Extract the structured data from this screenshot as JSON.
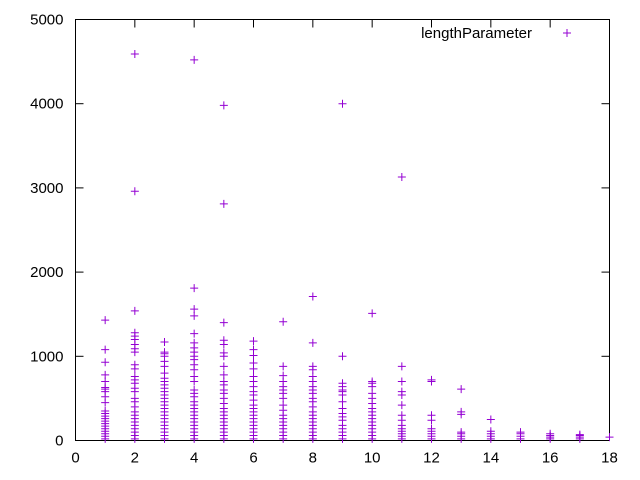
{
  "chart_data": {
    "type": "scatter",
    "title": "",
    "xlabel": "",
    "ylabel": "",
    "xlim": [
      0,
      18
    ],
    "ylim": [
      0,
      5000
    ],
    "xticks": [
      "0",
      "2",
      "4",
      "6",
      "8",
      "10",
      "12",
      "14",
      "16",
      "18"
    ],
    "yticks": [
      "0",
      "1000",
      "2000",
      "3000",
      "4000",
      "5000"
    ],
    "grid": false,
    "legend_position": "top-right",
    "marker": "plus",
    "series": [
      {
        "name": "lengthParameter",
        "color": "#9400d3",
        "points": [
          [
            1,
            20
          ],
          [
            1,
            50
          ],
          [
            1,
            80
          ],
          [
            1,
            110
          ],
          [
            1,
            140
          ],
          [
            1,
            170
          ],
          [
            1,
            200
          ],
          [
            1,
            230
          ],
          [
            1,
            260
          ],
          [
            1,
            290
          ],
          [
            1,
            320
          ],
          [
            1,
            350
          ],
          [
            1,
            450
          ],
          [
            1,
            520
          ],
          [
            1,
            580
          ],
          [
            1,
            610
          ],
          [
            1,
            630
          ],
          [
            1,
            700
          ],
          [
            1,
            780
          ],
          [
            1,
            930
          ],
          [
            1,
            1080
          ],
          [
            1,
            1430
          ],
          [
            2,
            20
          ],
          [
            2,
            60
          ],
          [
            2,
            100
          ],
          [
            2,
            140
          ],
          [
            2,
            180
          ],
          [
            2,
            220
          ],
          [
            2,
            260
          ],
          [
            2,
            300
          ],
          [
            2,
            340
          ],
          [
            2,
            400
          ],
          [
            2,
            460
          ],
          [
            2,
            500
          ],
          [
            2,
            580
          ],
          [
            2,
            620
          ],
          [
            2,
            680
          ],
          [
            2,
            720
          ],
          [
            2,
            760
          ],
          [
            2,
            850
          ],
          [
            2,
            900
          ],
          [
            2,
            1050
          ],
          [
            2,
            1090
          ],
          [
            2,
            1140
          ],
          [
            2,
            1200
          ],
          [
            2,
            1240
          ],
          [
            2,
            1280
          ],
          [
            2,
            1540
          ],
          [
            2,
            2960
          ],
          [
            2,
            4590
          ],
          [
            3,
            20
          ],
          [
            3,
            60
          ],
          [
            3,
            100
          ],
          [
            3,
            140
          ],
          [
            3,
            180
          ],
          [
            3,
            220
          ],
          [
            3,
            260
          ],
          [
            3,
            300
          ],
          [
            3,
            340
          ],
          [
            3,
            380
          ],
          [
            3,
            420
          ],
          [
            3,
            460
          ],
          [
            3,
            500
          ],
          [
            3,
            540
          ],
          [
            3,
            580
          ],
          [
            3,
            620
          ],
          [
            3,
            660
          ],
          [
            3,
            700
          ],
          [
            3,
            740
          ],
          [
            3,
            800
          ],
          [
            3,
            880
          ],
          [
            3,
            940
          ],
          [
            3,
            1000
          ],
          [
            3,
            1030
          ],
          [
            3,
            1050
          ],
          [
            3,
            1170
          ],
          [
            4,
            20
          ],
          [
            4,
            60
          ],
          [
            4,
            100
          ],
          [
            4,
            140
          ],
          [
            4,
            180
          ],
          [
            4,
            220
          ],
          [
            4,
            260
          ],
          [
            4,
            300
          ],
          [
            4,
            340
          ],
          [
            4,
            380
          ],
          [
            4,
            420
          ],
          [
            4,
            460
          ],
          [
            4,
            520
          ],
          [
            4,
            560
          ],
          [
            4,
            600
          ],
          [
            4,
            700
          ],
          [
            4,
            760
          ],
          [
            4,
            840
          ],
          [
            4,
            900
          ],
          [
            4,
            960
          ],
          [
            4,
            1000
          ],
          [
            4,
            1050
          ],
          [
            4,
            1100
          ],
          [
            4,
            1160
          ],
          [
            4,
            1270
          ],
          [
            4,
            1480
          ],
          [
            4,
            1560
          ],
          [
            4,
            1810
          ],
          [
            4,
            4520
          ],
          [
            5,
            20
          ],
          [
            5,
            60
          ],
          [
            5,
            100
          ],
          [
            5,
            140
          ],
          [
            5,
            180
          ],
          [
            5,
            220
          ],
          [
            5,
            260
          ],
          [
            5,
            300
          ],
          [
            5,
            340
          ],
          [
            5,
            380
          ],
          [
            5,
            440
          ],
          [
            5,
            500
          ],
          [
            5,
            560
          ],
          [
            5,
            600
          ],
          [
            5,
            660
          ],
          [
            5,
            700
          ],
          [
            5,
            780
          ],
          [
            5,
            880
          ],
          [
            5,
            1000
          ],
          [
            5,
            1040
          ],
          [
            5,
            1140
          ],
          [
            5,
            1190
          ],
          [
            5,
            1400
          ],
          [
            5,
            2810
          ],
          [
            5,
            3980
          ],
          [
            6,
            20
          ],
          [
            6,
            60
          ],
          [
            6,
            100
          ],
          [
            6,
            140
          ],
          [
            6,
            180
          ],
          [
            6,
            220
          ],
          [
            6,
            260
          ],
          [
            6,
            300
          ],
          [
            6,
            340
          ],
          [
            6,
            380
          ],
          [
            6,
            420
          ],
          [
            6,
            480
          ],
          [
            6,
            540
          ],
          [
            6,
            580
          ],
          [
            6,
            640
          ],
          [
            6,
            700
          ],
          [
            6,
            760
          ],
          [
            6,
            850
          ],
          [
            6,
            920
          ],
          [
            6,
            1010
          ],
          [
            6,
            1080
          ],
          [
            6,
            1180
          ],
          [
            7,
            20
          ],
          [
            7,
            60
          ],
          [
            7,
            100
          ],
          [
            7,
            140
          ],
          [
            7,
            180
          ],
          [
            7,
            220
          ],
          [
            7,
            260
          ],
          [
            7,
            300
          ],
          [
            7,
            360
          ],
          [
            7,
            420
          ],
          [
            7,
            500
          ],
          [
            7,
            560
          ],
          [
            7,
            600
          ],
          [
            7,
            640
          ],
          [
            7,
            700
          ],
          [
            7,
            770
          ],
          [
            7,
            880
          ],
          [
            7,
            1410
          ],
          [
            8,
            20
          ],
          [
            8,
            60
          ],
          [
            8,
            100
          ],
          [
            8,
            140
          ],
          [
            8,
            180
          ],
          [
            8,
            220
          ],
          [
            8,
            260
          ],
          [
            8,
            300
          ],
          [
            8,
            340
          ],
          [
            8,
            400
          ],
          [
            8,
            460
          ],
          [
            8,
            500
          ],
          [
            8,
            560
          ],
          [
            8,
            600
          ],
          [
            8,
            640
          ],
          [
            8,
            700
          ],
          [
            8,
            760
          ],
          [
            8,
            840
          ],
          [
            8,
            880
          ],
          [
            8,
            1160
          ],
          [
            8,
            1710
          ],
          [
            9,
            20
          ],
          [
            9,
            60
          ],
          [
            9,
            100
          ],
          [
            9,
            140
          ],
          [
            9,
            180
          ],
          [
            9,
            240
          ],
          [
            9,
            280
          ],
          [
            9,
            320
          ],
          [
            9,
            380
          ],
          [
            9,
            460
          ],
          [
            9,
            540
          ],
          [
            9,
            580
          ],
          [
            9,
            600
          ],
          [
            9,
            640
          ],
          [
            9,
            680
          ],
          [
            9,
            1000
          ],
          [
            9,
            4000
          ],
          [
            10,
            20
          ],
          [
            10,
            60
          ],
          [
            10,
            100
          ],
          [
            10,
            140
          ],
          [
            10,
            180
          ],
          [
            10,
            220
          ],
          [
            10,
            260
          ],
          [
            10,
            300
          ],
          [
            10,
            340
          ],
          [
            10,
            380
          ],
          [
            10,
            440
          ],
          [
            10,
            500
          ],
          [
            10,
            560
          ],
          [
            10,
            640
          ],
          [
            10,
            680
          ],
          [
            10,
            700
          ],
          [
            10,
            1510
          ],
          [
            11,
            20
          ],
          [
            11,
            50
          ],
          [
            11,
            80
          ],
          [
            11,
            110
          ],
          [
            11,
            140
          ],
          [
            11,
            180
          ],
          [
            11,
            240
          ],
          [
            11,
            300
          ],
          [
            11,
            420
          ],
          [
            11,
            540
          ],
          [
            11,
            580
          ],
          [
            11,
            700
          ],
          [
            11,
            880
          ],
          [
            11,
            3130
          ],
          [
            12,
            20
          ],
          [
            12,
            50
          ],
          [
            12,
            80
          ],
          [
            12,
            110
          ],
          [
            12,
            140
          ],
          [
            12,
            240
          ],
          [
            12,
            300
          ],
          [
            12,
            700
          ],
          [
            12,
            720
          ],
          [
            13,
            20
          ],
          [
            13,
            50
          ],
          [
            13,
            80
          ],
          [
            13,
            100
          ],
          [
            13,
            310
          ],
          [
            13,
            340
          ],
          [
            13,
            610
          ],
          [
            14,
            20
          ],
          [
            14,
            50
          ],
          [
            14,
            80
          ],
          [
            14,
            110
          ],
          [
            14,
            250
          ],
          [
            15,
            20
          ],
          [
            15,
            50
          ],
          [
            15,
            80
          ],
          [
            15,
            100
          ],
          [
            16,
            20
          ],
          [
            16,
            40
          ],
          [
            16,
            60
          ],
          [
            16,
            80
          ],
          [
            17,
            20
          ],
          [
            17,
            40
          ],
          [
            17,
            60
          ],
          [
            17,
            70
          ],
          [
            18,
            40
          ]
        ]
      }
    ]
  }
}
